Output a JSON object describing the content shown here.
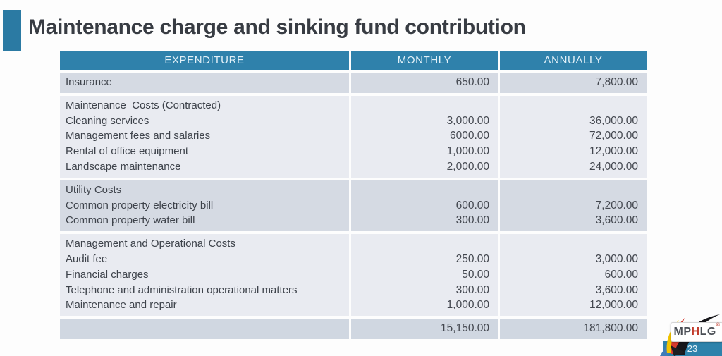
{
  "slide": {
    "title": "Maintenance charge and sinking fund contribution",
    "page_number": "23",
    "logo": {
      "text_m": "MP",
      "text_h": "H",
      "text_lg": "LG",
      "reg_mark": "®"
    }
  },
  "colors": {
    "accent_teal": "#2F81AB",
    "accent_square": "#2B7AA3",
    "band_dark": "#D5DAE3",
    "band_light": "#E9EBF1",
    "total_band": "#D0D7E1",
    "title_text": "#383C43",
    "table_text": "#3E434B",
    "header_text": "#E3F1F8",
    "logo_red": "#C23B2B",
    "logo_blue": "#3F7CB8",
    "logo_yellow": "#F2C500"
  },
  "table": {
    "headers": [
      "EXPENDITURE",
      "MONTHLY",
      "ANNUALLY"
    ],
    "sections": [
      {
        "band": "dark",
        "is_total": false,
        "rows": [
          {
            "label": "Insurance",
            "monthly": "650.00",
            "annually": "7,800.00"
          }
        ]
      },
      {
        "band": "light",
        "is_total": false,
        "rows": [
          {
            "label": "Maintenance  Costs (Contracted)",
            "monthly": "",
            "annually": ""
          },
          {
            "label": "Cleaning services",
            "monthly": "3,000.00",
            "annually": "36,000.00"
          },
          {
            "label": "Management fees and salaries",
            "monthly": "6000.00",
            "annually": "72,000.00"
          },
          {
            "label": "Rental of office equipment",
            "monthly": "1,000.00",
            "annually": "12,000.00"
          },
          {
            "label": "Landscape maintenance",
            "monthly": "2,000.00",
            "annually": "24,000.00"
          }
        ]
      },
      {
        "band": "dark",
        "is_total": false,
        "rows": [
          {
            "label": "Utility Costs",
            "monthly": "",
            "annually": ""
          },
          {
            "label": "Common property electricity bill",
            "monthly": "600.00",
            "annually": "7,200.00"
          },
          {
            "label": "Common property water bill",
            "monthly": "300.00",
            "annually": "3,600.00"
          }
        ]
      },
      {
        "band": "light",
        "is_total": false,
        "rows": [
          {
            "label": "Management and Operational Costs",
            "monthly": "",
            "annually": ""
          },
          {
            "label": "Audit fee",
            "monthly": "250.00",
            "annually": "3,000.00"
          },
          {
            "label": "Financial charges",
            "monthly": "50.00",
            "annually": "600.00"
          },
          {
            "label": "Telephone and administration operational matters",
            "monthly": "300.00",
            "annually": "3,600.00"
          },
          {
            "label": "Maintenance and repair",
            "monthly": "1,000.00",
            "annually": "12,000.00"
          }
        ]
      },
      {
        "band": "dark",
        "is_total": true,
        "rows": [
          {
            "label": "",
            "monthly": "15,150.00",
            "annually": "181,800.00"
          }
        ]
      }
    ]
  }
}
